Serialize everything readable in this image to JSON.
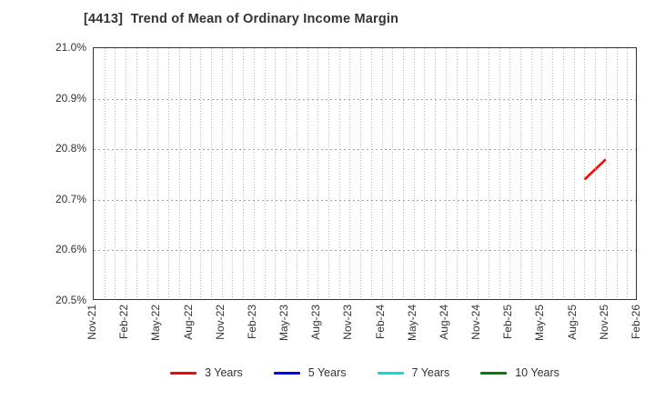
{
  "header": {
    "title": "[4413]  Trend of Mean of Ordinary Income Margin"
  },
  "colors": {
    "background": "#ffffff",
    "frame": "#333333",
    "grid_vertical": "#bbbbbb",
    "grid_horizontal": "#a6a6a6",
    "text": "#333333"
  },
  "chart_data": {
    "type": "line",
    "title": "[4413]  Trend of Mean of Ordinary Income Margin",
    "xlabel": "",
    "ylabel": "",
    "ylim": [
      20.5,
      21.0
    ],
    "y_ticks": [
      {
        "label": "20.5%",
        "value": 20.5
      },
      {
        "label": "20.6%",
        "value": 20.6
      },
      {
        "label": "20.7%",
        "value": 20.7
      },
      {
        "label": "20.8%",
        "value": 20.8
      },
      {
        "label": "20.9%",
        "value": 20.9
      },
      {
        "label": "21.0%",
        "value": 21.0
      }
    ],
    "x_tick_labels": [
      "Nov-21",
      "Feb-22",
      "May-22",
      "Aug-22",
      "Nov-22",
      "Feb-23",
      "May-23",
      "Aug-23",
      "Nov-23",
      "Feb-24",
      "May-24",
      "Aug-24",
      "Nov-24",
      "Feb-25",
      "May-25",
      "Aug-25",
      "Nov-25",
      "Feb-26"
    ],
    "grid": {
      "vertical": "monthly-dotted",
      "horizontal": "dashed-each-0.1pct",
      "on": true
    },
    "legend_position": "bottom-center",
    "series": [
      {
        "name": "3 Years",
        "color": "#ff0000",
        "points": [
          {
            "x": "Sep-25",
            "y": 20.74
          },
          {
            "x": "Nov-25",
            "y": 20.78
          }
        ]
      },
      {
        "name": "5 Years",
        "color": "#0000ff",
        "points": []
      },
      {
        "name": "7 Years",
        "color": "#00e0e0",
        "points": []
      },
      {
        "name": "10 Years",
        "color": "#008000",
        "points": []
      }
    ]
  }
}
